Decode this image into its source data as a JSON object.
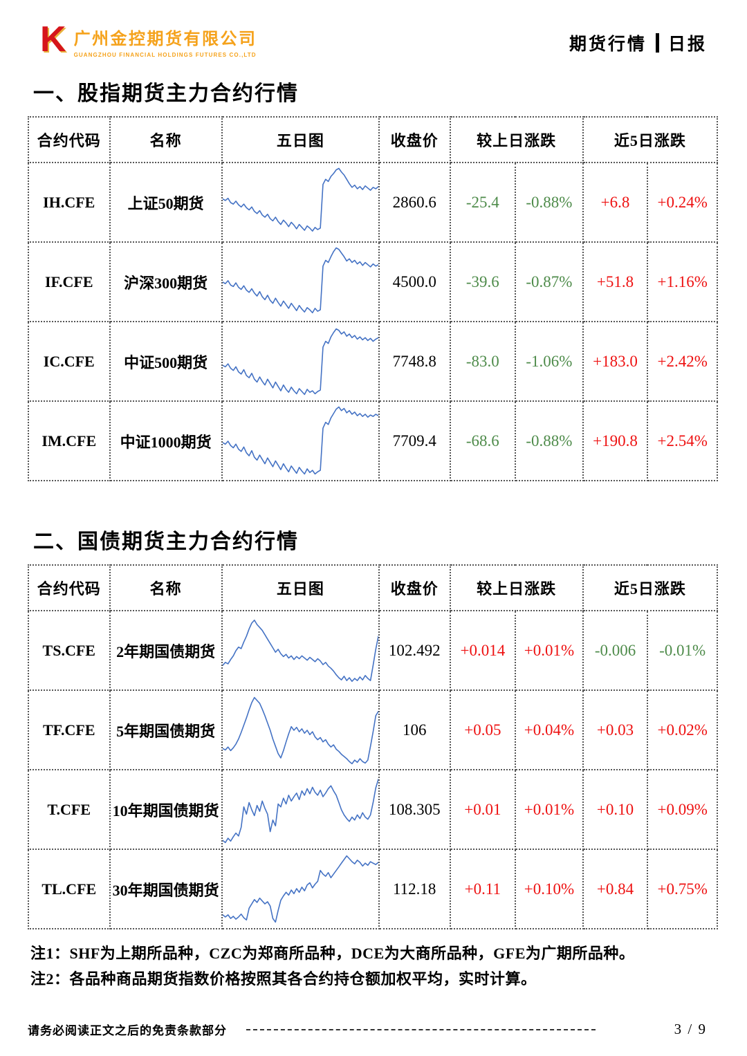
{
  "brand": {
    "logo_letter": "K",
    "company_cn": "广州金控期货有限公司",
    "company_en": "GUANGZHOU FINANCIAL HOLDINGS FUTURES CO.,LTD"
  },
  "report": {
    "category": "期货行情",
    "type": "日报"
  },
  "colors": {
    "up_red": "#ee1111",
    "down_green": "#4e8b4a",
    "chart_line": "#4472c4",
    "brand_gold": "#f5a21b",
    "logo_red": "#d6151b"
  },
  "sections": [
    {
      "title": "一、股指期货主力合约行情",
      "columns": [
        "合约代码",
        "名称",
        "五日图",
        "收盘价",
        "较上日涨跌",
        "近5日涨跌"
      ],
      "rows": [
        {
          "code": "IH.CFE",
          "name": "上证50期货",
          "close": "2860.6",
          "day_change": "-25.4",
          "day_change_pct": "-0.88%",
          "five_day_change": "+6.8",
          "five_day_change_pct": "+0.24%",
          "spark": [
            55,
            53,
            56,
            50,
            48,
            52,
            47,
            44,
            48,
            43,
            40,
            44,
            38,
            35,
            39,
            33,
            30,
            34,
            28,
            25,
            30,
            24,
            20,
            26,
            22,
            17,
            23,
            19,
            14,
            20,
            16,
            12,
            18,
            15,
            11,
            16,
            13,
            15,
            75,
            82,
            79,
            86,
            90,
            95,
            97,
            92,
            88,
            82,
            76,
            71,
            74,
            69,
            72,
            68,
            73,
            70,
            67,
            71,
            69,
            72
          ]
        },
        {
          "code": "IF.CFE",
          "name": "沪深300期货",
          "close": "4500.0",
          "day_change": "-39.6",
          "day_change_pct": "-0.87%",
          "five_day_change": "+51.8",
          "five_day_change_pct": "+1.16%",
          "spark": [
            50,
            48,
            52,
            46,
            44,
            49,
            43,
            40,
            45,
            39,
            36,
            41,
            35,
            31,
            37,
            30,
            26,
            32,
            25,
            21,
            28,
            22,
            17,
            24,
            19,
            14,
            21,
            16,
            11,
            18,
            13,
            9,
            15,
            12,
            8,
            14,
            10,
            12,
            72,
            80,
            77,
            85,
            92,
            97,
            95,
            90,
            85,
            79,
            82,
            77,
            80,
            75,
            78,
            73,
            77,
            74,
            71,
            75,
            72,
            74
          ]
        },
        {
          "code": "IC.CFE",
          "name": "中证500期货",
          "close": "7748.8",
          "day_change": "-83.0",
          "day_change_pct": "-1.06%",
          "five_day_change": "+183.0",
          "five_day_change_pct": "+2.42%",
          "spark": [
            45,
            43,
            47,
            41,
            38,
            43,
            36,
            33,
            39,
            31,
            28,
            34,
            26,
            22,
            29,
            23,
            18,
            26,
            20,
            14,
            22,
            16,
            10,
            18,
            12,
            8,
            15,
            10,
            6,
            13,
            9,
            5,
            12,
            8,
            10,
            6,
            9,
            11,
            70,
            78,
            75,
            84,
            90,
            95,
            93,
            88,
            91,
            85,
            88,
            83,
            86,
            81,
            84,
            80,
            83,
            79,
            82,
            78,
            81,
            83
          ]
        },
        {
          "code": "IM.CFE",
          "name": "中证1000期货",
          "close": "7709.4",
          "day_change": "-68.6",
          "day_change_pct": "-0.88%",
          "five_day_change": "+190.8",
          "five_day_change_pct": "+2.54%",
          "spark": [
            48,
            46,
            50,
            44,
            41,
            46,
            39,
            36,
            42,
            34,
            30,
            37,
            28,
            24,
            31,
            25,
            19,
            27,
            21,
            15,
            23,
            17,
            11,
            19,
            13,
            8,
            16,
            11,
            6,
            14,
            9,
            5,
            12,
            7,
            10,
            5,
            8,
            10,
            68,
            76,
            73,
            82,
            88,
            94,
            97,
            92,
            95,
            89,
            92,
            87,
            90,
            85,
            88,
            84,
            87,
            83,
            86,
            84,
            87,
            85
          ]
        }
      ]
    },
    {
      "title": "二、国债期货主力合约行情",
      "columns": [
        "合约代码",
        "名称",
        "五日图",
        "收盘价",
        "较上日涨跌",
        "近5日涨跌"
      ],
      "rows": [
        {
          "code": "TS.CFE",
          "name": "2年期国债期货",
          "close": "102.492",
          "day_change": "+0.014",
          "day_change_pct": "+0.01%",
          "five_day_change": "-0.006",
          "five_day_change_pct": "-0.01%",
          "spark": [
            30,
            34,
            32,
            38,
            43,
            50,
            55,
            53,
            62,
            70,
            80,
            88,
            92,
            86,
            82,
            78,
            72,
            66,
            60,
            54,
            48,
            52,
            46,
            42,
            45,
            40,
            43,
            38,
            42,
            39,
            43,
            40,
            37,
            41,
            38,
            35,
            39,
            36,
            31,
            34,
            29,
            26,
            22,
            17,
            13,
            10,
            15,
            9,
            13,
            8,
            12,
            9,
            14,
            10,
            16,
            12,
            9,
            30,
            52,
            70
          ]
        },
        {
          "code": "TF.CFE",
          "name": "5年期国债期货",
          "close": "106",
          "day_change": "+0.05",
          "day_change_pct": "+0.04%",
          "five_day_change": "+0.03",
          "five_day_change_pct": "+0.02%",
          "spark": [
            25,
            23,
            27,
            22,
            26,
            31,
            38,
            47,
            57,
            67,
            78,
            88,
            95,
            91,
            87,
            79,
            70,
            60,
            50,
            38,
            28,
            18,
            12,
            22,
            34,
            45,
            55,
            50,
            54,
            48,
            52,
            46,
            50,
            44,
            48,
            41,
            37,
            40,
            34,
            37,
            31,
            27,
            30,
            24,
            21,
            17,
            14,
            11,
            7,
            4,
            9,
            6,
            11,
            7,
            5,
            9,
            28,
            48,
            70,
            76
          ]
        },
        {
          "code": "T.CFE",
          "name": "10年期国债期货",
          "close": "108.305",
          "day_change": "+0.01",
          "day_change_pct": "+0.01%",
          "five_day_change": "+0.10",
          "five_day_change_pct": "+0.09%",
          "spark": [
            8,
            5,
            11,
            7,
            13,
            18,
            14,
            26,
            54,
            44,
            60,
            50,
            42,
            56,
            48,
            62,
            52,
            44,
            20,
            36,
            28,
            58,
            54,
            66,
            58,
            70,
            62,
            68,
            73,
            64,
            76,
            70,
            79,
            72,
            81,
            74,
            70,
            77,
            68,
            73,
            79,
            83,
            76,
            70,
            60,
            50,
            43,
            38,
            34,
            40,
            36,
            43,
            38,
            46,
            40,
            37,
            43,
            60,
            80,
            92
          ]
        },
        {
          "code": "TL.CFE",
          "name": "30年期国债期货",
          "close": "112.18",
          "day_change": "+0.11",
          "day_change_pct": "+0.10%",
          "five_day_change": "+0.84",
          "five_day_change_pct": "+0.75%",
          "spark": [
            15,
            12,
            15,
            10,
            13,
            9,
            12,
            16,
            11,
            8,
            24,
            30,
            36,
            32,
            38,
            34,
            30,
            33,
            27,
            10,
            5,
            21,
            35,
            41,
            46,
            42,
            49,
            44,
            51,
            46,
            53,
            48,
            56,
            59,
            52,
            57,
            61,
            76,
            71,
            68,
            73,
            66,
            71,
            76,
            81,
            86,
            91,
            96,
            92,
            88,
            85,
            90,
            87,
            82,
            86,
            83,
            88,
            86,
            84,
            87
          ]
        }
      ]
    }
  ],
  "notes": [
    "注1：SHF为上期所品种，CZC为郑商所品种，DCE为大商所品种，GFE为广期所品种。",
    "注2：各品种商品期货指数价格按照其各合约持仓额加权平均，实时计算。"
  ],
  "footer": {
    "disclaimer": "请务必阅读正文之后的免责条款部分",
    "page": "3 / 9"
  }
}
